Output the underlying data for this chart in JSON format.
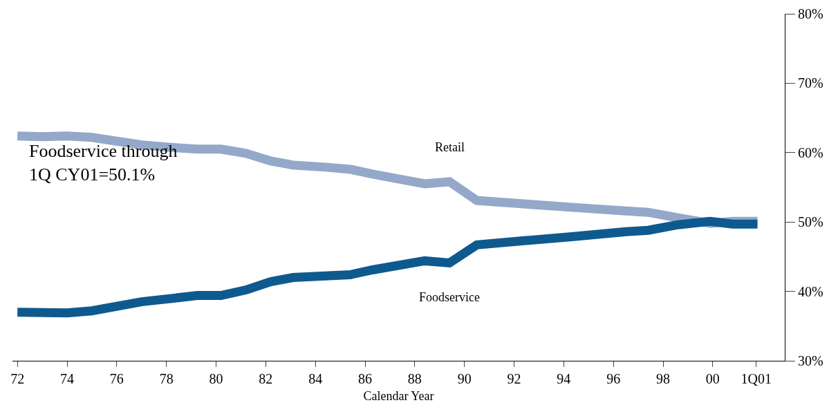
{
  "chart_data": {
    "type": "line",
    "xlabel": "Calendar Year",
    "annotations": [
      "Foodservice through\n1Q CY01=50.1%"
    ],
    "xlim": [
      1971.8,
      2002.9
    ],
    "xticks": [
      {
        "value": 1972,
        "label": "72"
      },
      {
        "value": 1974,
        "label": "74"
      },
      {
        "value": 1976,
        "label": "76"
      },
      {
        "value": 1978,
        "label": "78"
      },
      {
        "value": 1980,
        "label": "80"
      },
      {
        "value": 1982,
        "label": "82"
      },
      {
        "value": 1984,
        "label": "84"
      },
      {
        "value": 1986,
        "label": "86"
      },
      {
        "value": 1988,
        "label": "88"
      },
      {
        "value": 1990,
        "label": "90"
      },
      {
        "value": 1992,
        "label": "92"
      },
      {
        "value": 1994,
        "label": "94"
      },
      {
        "value": 1996,
        "label": "96"
      },
      {
        "value": 1998,
        "label": "98"
      },
      {
        "value": 2000,
        "label": "00"
      },
      {
        "value": 2001.75,
        "label": "1Q01"
      }
    ],
    "ylim": [
      30,
      80
    ],
    "yticks": [
      {
        "value": 30,
        "label": "30%"
      },
      {
        "value": 40,
        "label": "40%"
      },
      {
        "value": 50,
        "label": "50%"
      },
      {
        "value": 60,
        "label": "60%"
      },
      {
        "value": 70,
        "label": "70%"
      },
      {
        "value": 80,
        "label": "80%"
      }
    ],
    "grid": false,
    "legend": false,
    "marker": "none",
    "line_style": "solid",
    "series": [
      {
        "name": "Retail",
        "color": "#94a8c9",
        "x": [
          1972,
          1973,
          1974,
          1975,
          1977,
          1978,
          1979.25,
          1980.2,
          1981.2,
          1982.2,
          1983.1,
          1984.4,
          1985.4,
          1986.3,
          1988.4,
          1989.4,
          1990.5,
          1992.4,
          1994.4,
          1996.5,
          1997.4,
          1998.6,
          1999.9,
          2000.8,
          2001.8
        ],
        "values": [
          62.4,
          62.3,
          62.4,
          62.2,
          61.1,
          60.8,
          60.5,
          60.5,
          59.9,
          58.8,
          58.2,
          57.9,
          57.6,
          56.9,
          55.5,
          55.8,
          53.1,
          52.6,
          52.1,
          51.6,
          51.4,
          50.6,
          49.8,
          50.1,
          50.1
        ]
      },
      {
        "name": "Foodservice",
        "color": "#0e5a8f",
        "x": [
          1972,
          1974,
          1975,
          1977,
          1979.25,
          1980.2,
          1981.2,
          1982.2,
          1983.1,
          1985.4,
          1986.3,
          1988.4,
          1989.4,
          1990.5,
          1992.4,
          1994.4,
          1996.5,
          1997.4,
          1998.6,
          1999.9,
          2000.8,
          2001.8
        ],
        "values": [
          37.0,
          36.9,
          37.2,
          38.5,
          39.4,
          39.4,
          40.2,
          41.4,
          42.0,
          42.4,
          43.1,
          44.4,
          44.1,
          46.7,
          47.3,
          47.9,
          48.6,
          48.8,
          49.6,
          50.1,
          49.7,
          49.7
        ]
      }
    ]
  }
}
